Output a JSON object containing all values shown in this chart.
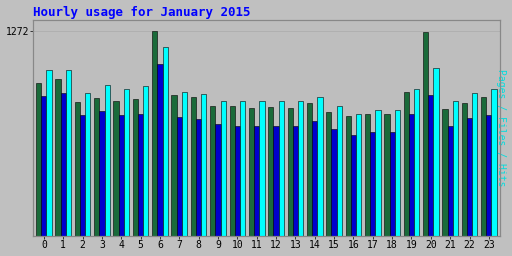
{
  "title": "Hourly usage for January 2015",
  "ylabel_right": "Pages / Files / Hits",
  "ymax": 1272,
  "ytick_label": "1272",
  "hours": [
    0,
    1,
    2,
    3,
    4,
    5,
    6,
    7,
    8,
    9,
    10,
    11,
    12,
    13,
    14,
    15,
    16,
    17,
    18,
    19,
    20,
    21,
    22,
    23
  ],
  "pages": [
    950,
    975,
    830,
    855,
    840,
    850,
    1272,
    875,
    860,
    805,
    810,
    795,
    800,
    795,
    825,
    770,
    745,
    755,
    755,
    895,
    1268,
    790,
    825,
    860
  ],
  "files": [
    870,
    885,
    750,
    775,
    750,
    755,
    1070,
    740,
    725,
    695,
    685,
    685,
    685,
    685,
    715,
    665,
    630,
    645,
    648,
    758,
    878,
    685,
    730,
    750
  ],
  "hits": [
    1030,
    1030,
    890,
    935,
    910,
    930,
    1170,
    895,
    880,
    840,
    840,
    840,
    840,
    840,
    860,
    810,
    760,
    780,
    785,
    915,
    1040,
    840,
    885,
    910
  ],
  "color_pages": "#1a6b3a",
  "color_files": "#0000cd",
  "color_hits": "#00ffff",
  "bg_color": "#c0c0c0",
  "plot_bg": "#bebebe",
  "title_color": "#0000ff",
  "ylabel_color": "#00dddd",
  "border_color": "#888888"
}
